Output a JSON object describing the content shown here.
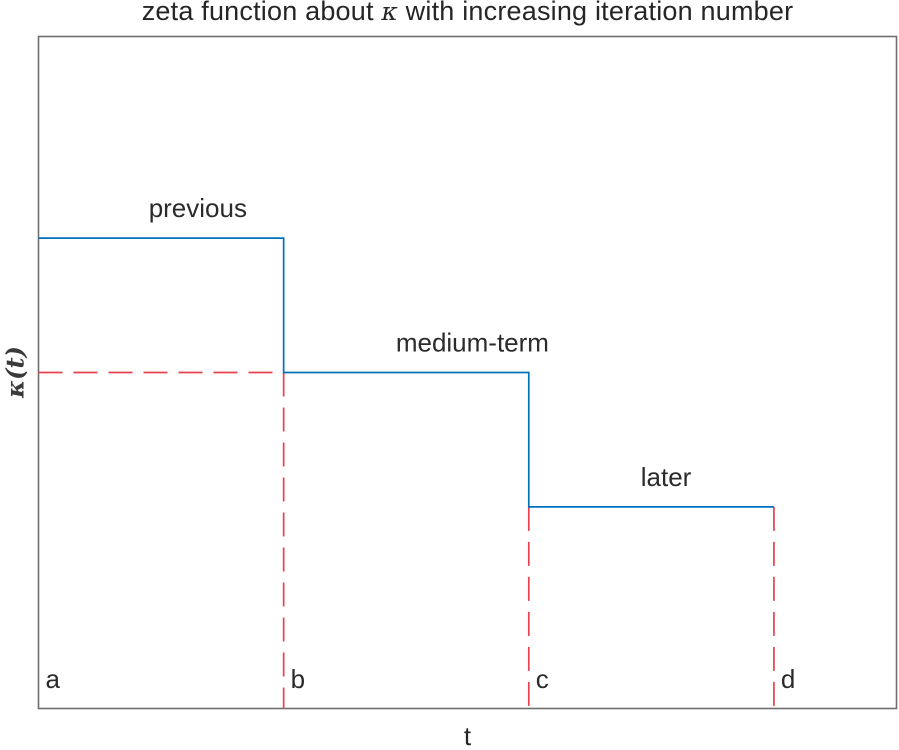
{
  "chart_data": {
    "type": "line",
    "subtype": "step",
    "title_pre": "zeta function about ",
    "title_kappa": "κ",
    "title_post": " with increasing iteration number",
    "xlabel": "t",
    "ylabel": "κ(t)",
    "xlim": [
      0,
      3.5
    ],
    "ylim": [
      0,
      1
    ],
    "grid": false,
    "legend": false,
    "ticks": "none",
    "steps": [
      {
        "label": "previous",
        "x_start": 0,
        "x_end": 1,
        "level": 0.7,
        "label_x": 0.65
      },
      {
        "label": "medium-term",
        "x_start": 1,
        "x_end": 2,
        "level": 0.5,
        "label_x": 1.77
      },
      {
        "label": "later",
        "x_start": 2,
        "x_end": 3,
        "level": 0.3,
        "label_x": 2.56
      }
    ],
    "step_points": [
      [
        0,
        0.7
      ],
      [
        1,
        0.7
      ],
      [
        1,
        0.5
      ],
      [
        2,
        0.5
      ],
      [
        2,
        0.3
      ],
      [
        3,
        0.3
      ]
    ],
    "guides": [
      {
        "name": "medium-level-horizontal",
        "orient": "h",
        "y": 0.5,
        "x_start": 0,
        "x_end": 1
      },
      {
        "name": "b-vertical",
        "orient": "v",
        "x": 1,
        "y_start": 0.5,
        "y_end": 0
      },
      {
        "name": "c-vertical",
        "orient": "v",
        "x": 2,
        "y_start": 0.3,
        "y_end": 0
      },
      {
        "name": "d-vertical",
        "orient": "v",
        "x": 3,
        "y_start": 0.3,
        "y_end": 0
      }
    ],
    "x_tick_labels": [
      {
        "label": "a",
        "x": 0
      },
      {
        "label": "b",
        "x": 1
      },
      {
        "label": "c",
        "x": 2
      },
      {
        "label": "d",
        "x": 3
      }
    ],
    "colors": {
      "step_line": "#0072BD",
      "guide_line": "#E8414E",
      "axes_box": "#6E6E6E",
      "text": "#2B2B2B",
      "background": "#FFFFFF"
    }
  }
}
